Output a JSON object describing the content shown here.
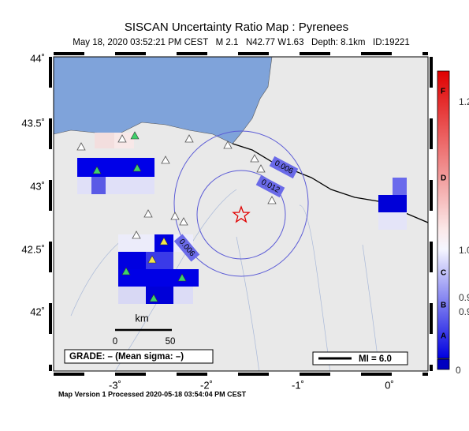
{
  "header": {
    "title": "SISCAN Uncertainty Ratio Map : Pyrenees",
    "subtitle": "May 18, 2020 03:52:21 PM CEST   M 2.1   N42.77 W1.63   Depth: 8.1km   ID:19221"
  },
  "map": {
    "lat_labels": [
      "44˚",
      "43.5˚",
      "43˚",
      "42.5˚",
      "42˚"
    ],
    "lon_labels": [
      "-3˚",
      "-2˚",
      "-1˚",
      "0˚"
    ],
    "contour_labels": [
      "0.006",
      "0.012",
      "0.006"
    ],
    "scale_bar": {
      "unit": "km",
      "start": "0",
      "end": "50"
    },
    "grade": "GRADE: – (Mean sigma: –)",
    "intensity": "MI = 6.0"
  },
  "colorbar": {
    "grades": [
      "F",
      "D",
      "C",
      "B",
      "A"
    ],
    "values": [
      "1.2",
      "1.0",
      "0.9",
      "0.9",
      "0"
    ]
  },
  "footer": "Map Version 1 Processed 2020-05-18 03:54:04 PM CEST"
}
